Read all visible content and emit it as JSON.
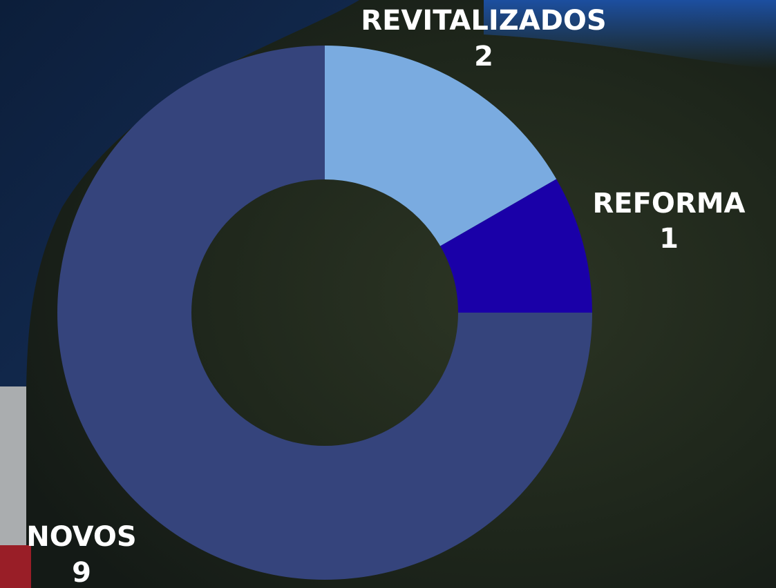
{
  "chart_data": {
    "type": "donut",
    "categories": [
      "REVITALIZADOS",
      "REFORMA",
      "NOVOS"
    ],
    "values": [
      2,
      1,
      9
    ],
    "colors": [
      "#7aabe0",
      "#1a00a8",
      "#35447c"
    ]
  }
}
